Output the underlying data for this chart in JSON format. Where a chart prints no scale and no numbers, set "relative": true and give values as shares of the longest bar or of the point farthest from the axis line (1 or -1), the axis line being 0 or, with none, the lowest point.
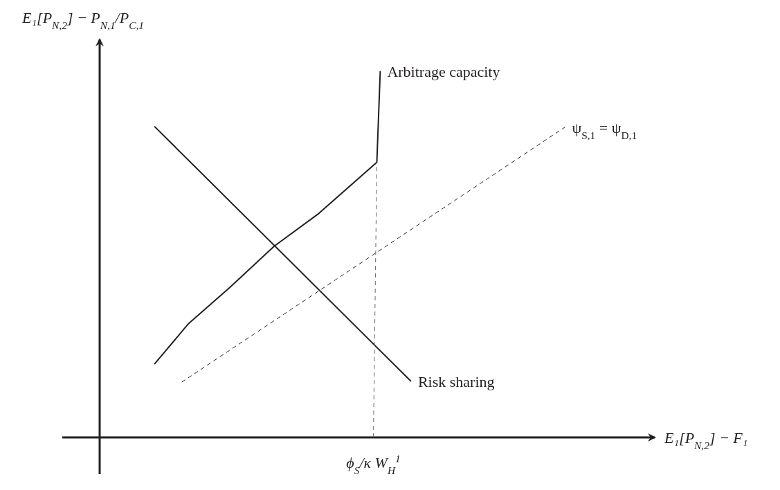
{
  "chart_data": {
    "type": "line",
    "relative": true,
    "xlabel": "E₁[P$_{N,2}$] − F₁",
    "ylabel": "E₁[P$_{N,2}$] − P$_{N,1}$/P$_{C,1}$",
    "categories": [
      null,
      null,
      null,
      null,
      null,
      null,
      null,
      null,
      null,
      null,
      null,
      null,
      null,
      null,
      null,
      null,
      null,
      null,
      null,
      null,
      null,
      null,
      null,
      null,
      null,
      null,
      null,
      null,
      null,
      null,
      null,
      null,
      null,
      null,
      null,
      null,
      null,
      null,
      null,
      null,
      null,
      null,
      null,
      null,
      null,
      null,
      null,
      null,
      null,
      null,
      null,
      null,
      null,
      null,
      null,
      null,
      null,
      null,
      null,
      null,
      null,
      null,
      null,
      null,
      null,
      null,
      null,
      null,
      null,
      null,
      null,
      null,
      null,
      null,
      null,
      null,
      null,
      null,
      null,
      null,
      null,
      null,
      null,
      null,
      null,
      null,
      null,
      null,
      null,
      null,
      null,
      null,
      null,
      null,
      null,
      null,
      null,
      null,
      null,
      null,
      null,
      null,
      null,
      null,
      null,
      null,
      null,
      null,
      null,
      null,
      null,
      null,
      null,
      null,
      null,
      null,
      null,
      null,
      null,
      null,
      null,
      null,
      null,
      null,
      null,
      null,
      null,
      null,
      null,
      null,
      null,
      null,
      null,
      null,
      null,
      null,
      null,
      null,
      null,
      null,
      null,
      null,
      null,
      null,
      null,
      null,
      null,
      null,
      null,
      null,
      null,
      null,
      null,
      null,
      null,
      null,
      null,
      null,
      null,
      null,
      null,
      null
    ],
    "series": [
      {
        "name": "Arbitrage capacity",
        "color": "#231f20",
        "values": [
          null,
          null,
          null,
          null,
          null,
          null,
          null,
          null,
          null,
          null,
          null,
          null,
          null,
          null,
          null,
          null,
          0.2,
          null,
          null,
          null,
          null,
          null,
          null,
          null,
          null,
          null,
          0.311,
          null,
          null,
          null,
          null,
          null,
          null,
          null,
          null,
          null,
          null,
          null,
          0.409,
          null,
          null,
          null,
          null,
          null,
          null,
          null,
          null,
          null,
          null,
          null,
          null,
          0.522,
          null,
          null,
          null,
          null,
          null,
          null,
          null,
          null,
          null,
          null,
          null,
          null,
          0.611,
          null,
          null,
          null,
          null,
          null,
          null,
          null,
          null,
          null,
          null,
          null,
          null,
          null,
          null,
          null,
          null,
          0.751,
          1.0,
          null,
          null,
          null,
          null,
          null,
          null,
          null,
          null,
          null,
          null,
          null,
          null,
          null,
          null,
          null,
          null,
          null,
          null,
          null,
          null,
          null,
          null,
          null,
          null,
          null,
          null,
          null,
          null,
          null,
          null,
          null,
          null,
          null,
          null,
          null,
          null,
          null,
          null,
          null,
          null,
          null,
          null,
          null,
          null,
          null,
          null,
          null,
          null,
          null,
          null,
          null,
          null,
          null,
          null,
          null,
          null,
          null,
          null,
          null,
          null,
          null,
          null,
          null,
          null,
          null,
          null,
          null,
          null,
          null,
          null,
          null,
          null,
          null,
          null,
          null,
          null,
          null,
          null,
          null
        ]
      },
      {
        "name": "Risk sharing",
        "color": "#231f20",
        "values": [
          null,
          null,
          null,
          null,
          null,
          null,
          null,
          null,
          null,
          null,
          null,
          null,
          null,
          null,
          null,
          null,
          0.849,
          null,
          null,
          null,
          null,
          null,
          null,
          null,
          null,
          null,
          null,
          null,
          null,
          null,
          null,
          null,
          null,
          null,
          null,
          null,
          null,
          null,
          null,
          null,
          null,
          null,
          null,
          null,
          null,
          null,
          null,
          null,
          null,
          null,
          null,
          null,
          null,
          null,
          null,
          null,
          null,
          null,
          null,
          null,
          null,
          null,
          null,
          null,
          null,
          null,
          null,
          null,
          null,
          null,
          null,
          null,
          null,
          null,
          null,
          null,
          null,
          null,
          null,
          null,
          null,
          null,
          null,
          null,
          null,
          null,
          null,
          null,
          null,
          null,
          null,
          0.153,
          null,
          null,
          null,
          null,
          null,
          null,
          null,
          null,
          null,
          null,
          null,
          null,
          null,
          null,
          null,
          null,
          null,
          null,
          null,
          null,
          null,
          null,
          null,
          null,
          null,
          null,
          null,
          null,
          null,
          null,
          null,
          null,
          null,
          null,
          null,
          null,
          null,
          null,
          null,
          null,
          null,
          null,
          null,
          null,
          null,
          null,
          null,
          null,
          null,
          null,
          null,
          null,
          null,
          null,
          null,
          null,
          null,
          null,
          null,
          null,
          null,
          null,
          null,
          null,
          null,
          null,
          null,
          null,
          null,
          null
        ]
      },
      {
        "name": "ψ$_{S,1}$ = ψ$_{D,1}$",
        "color": "#231f20",
        "line_style": "dashed",
        "values": [
          null,
          null,
          null,
          null,
          null,
          null,
          null,
          null,
          null,
          null,
          null,
          null,
          null,
          null,
          null,
          null,
          null,
          null,
          null,
          null,
          null,
          null,
          null,
          null,
          0.151,
          null,
          null,
          null,
          null,
          null,
          null,
          null,
          null,
          null,
          null,
          null,
          null,
          null,
          null,
          null,
          null,
          null,
          null,
          null,
          null,
          null,
          null,
          null,
          null,
          null,
          null,
          null,
          null,
          null,
          null,
          null,
          null,
          null,
          null,
          null,
          null,
          null,
          null,
          null,
          null,
          null,
          null,
          null,
          null,
          null,
          null,
          null,
          null,
          null,
          null,
          null,
          null,
          null,
          null,
          null,
          null,
          null,
          null,
          null,
          null,
          null,
          null,
          null,
          null,
          null,
          null,
          null,
          null,
          null,
          null,
          null,
          null,
          null,
          null,
          null,
          null,
          null,
          null,
          null,
          null,
          null,
          null,
          null,
          null,
          null,
          null,
          null,
          null,
          null,
          null,
          null,
          null,
          null,
          null,
          null,
          null,
          null,
          null,
          null,
          null,
          null,
          null,
          null,
          null,
          null,
          null,
          null,
          null,
          null,
          null,
          null,
          0.847,
          null,
          null,
          null,
          null,
          null,
          null,
          null,
          null,
          null,
          null,
          null,
          null,
          null,
          null,
          null,
          null,
          null,
          null,
          null,
          null,
          null,
          null,
          null,
          null,
          null
        ]
      },
      {
        "name": "ϕ$_{S}$/κ W$_{H}$$^{1}$",
        "color": "#666666",
        "line_style": "dashed",
        "values": [
          null,
          null,
          null,
          null,
          null,
          null,
          null,
          null,
          null,
          null,
          null,
          null,
          null,
          null,
          null,
          null,
          null,
          null,
          null,
          null,
          null,
          null,
          null,
          null,
          null,
          null,
          null,
          null,
          null,
          null,
          null,
          null,
          null,
          null,
          null,
          null,
          null,
          null,
          null,
          null,
          null,
          null,
          null,
          null,
          null,
          null,
          null,
          null,
          null,
          null,
          null,
          null,
          null,
          null,
          null,
          null,
          null,
          null,
          null,
          null,
          null,
          null,
          null,
          null,
          null,
          null,
          null,
          null,
          null,
          null,
          null,
          null,
          null,
          null,
          null,
          null,
          null,
          null,
          null,
          null,
          0,
          0.751,
          null,
          null,
          null,
          null,
          null,
          null,
          null,
          null,
          null,
          null,
          null,
          null,
          null,
          null,
          null,
          null,
          null,
          null,
          null,
          null,
          null,
          null,
          null,
          null,
          null,
          null,
          null,
          null,
          null,
          null,
          null,
          null,
          null,
          null,
          null,
          null,
          null,
          null,
          null,
          null,
          null,
          null,
          null,
          null,
          null,
          null,
          null,
          null,
          null,
          null,
          null,
          null,
          null,
          null,
          null,
          null,
          null,
          null,
          null,
          null,
          null,
          null,
          null,
          null,
          null,
          null,
          null,
          null,
          null,
          null,
          null,
          null,
          null,
          null,
          null,
          null,
          null,
          null,
          null,
          null
        ]
      }
    ]
  }
}
